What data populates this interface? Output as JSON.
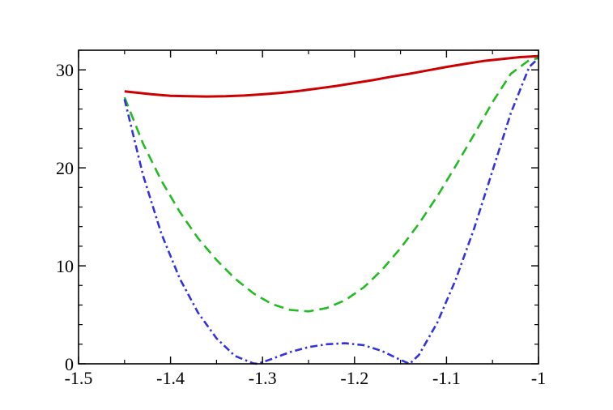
{
  "chart_data": {
    "type": "line",
    "title": "",
    "xlabel": "",
    "ylabel": "",
    "xlim": [
      -1.5,
      -1.0
    ],
    "ylim": [
      0,
      32
    ],
    "grid": false,
    "xticks": [
      -1.5,
      -1.4,
      -1.3,
      -1.2,
      -1.1,
      -1.0
    ],
    "xtick_labels": [
      "-1.5",
      "-1.4",
      "-1.3",
      "-1.2",
      "-1.1",
      "-1"
    ],
    "yticks": [
      0,
      10,
      20,
      30
    ],
    "ytick_labels": [
      "0",
      "10",
      "20",
      "30"
    ],
    "series": [
      {
        "color": "#cc0000",
        "style": "solid",
        "x": [
          -1.45,
          -1.42,
          -1.4,
          -1.38,
          -1.36,
          -1.34,
          -1.32,
          -1.3,
          -1.28,
          -1.26,
          -1.24,
          -1.22,
          -1.2,
          -1.18,
          -1.16,
          -1.14,
          -1.12,
          -1.1,
          -1.08,
          -1.06,
          -1.04,
          -1.02,
          -1.0
        ],
        "y": [
          27.8,
          27.5,
          27.35,
          27.3,
          27.28,
          27.3,
          27.38,
          27.5,
          27.65,
          27.85,
          28.1,
          28.35,
          28.65,
          28.95,
          29.3,
          29.6,
          29.95,
          30.3,
          30.6,
          30.9,
          31.1,
          31.3,
          31.4
        ]
      },
      {
        "color": "#22bb22",
        "style": "dashed",
        "x": [
          -1.45,
          -1.43,
          -1.41,
          -1.39,
          -1.37,
          -1.35,
          -1.33,
          -1.31,
          -1.29,
          -1.27,
          -1.25,
          -1.23,
          -1.21,
          -1.19,
          -1.17,
          -1.15,
          -1.13,
          -1.11,
          -1.09,
          -1.07,
          -1.05,
          -1.03,
          -1.01,
          -1.0
        ],
        "y": [
          27.2,
          22.5,
          18.7,
          15.5,
          12.8,
          10.6,
          8.7,
          7.2,
          6.1,
          5.5,
          5.35,
          5.7,
          6.5,
          7.8,
          9.6,
          11.8,
          14.3,
          17.1,
          20.2,
          23.4,
          26.7,
          29.6,
          31.0,
          31.2
        ]
      },
      {
        "color": "#3333dd",
        "style": "dashdot",
        "x": [
          -1.45,
          -1.43,
          -1.41,
          -1.39,
          -1.37,
          -1.35,
          -1.33,
          -1.31,
          -1.305,
          -1.29,
          -1.27,
          -1.25,
          -1.23,
          -1.21,
          -1.19,
          -1.17,
          -1.15,
          -1.14,
          -1.13,
          -1.11,
          -1.09,
          -1.07,
          -1.05,
          -1.03,
          -1.01,
          -1.0
        ],
        "y": [
          27.0,
          19.3,
          13.3,
          8.7,
          5.2,
          2.6,
          0.8,
          0.05,
          0.0,
          0.5,
          1.2,
          1.7,
          2.0,
          2.1,
          1.9,
          1.3,
          0.4,
          0.0,
          0.9,
          4.2,
          8.6,
          13.8,
          19.7,
          25.6,
          30.3,
          31.2
        ]
      }
    ]
  }
}
